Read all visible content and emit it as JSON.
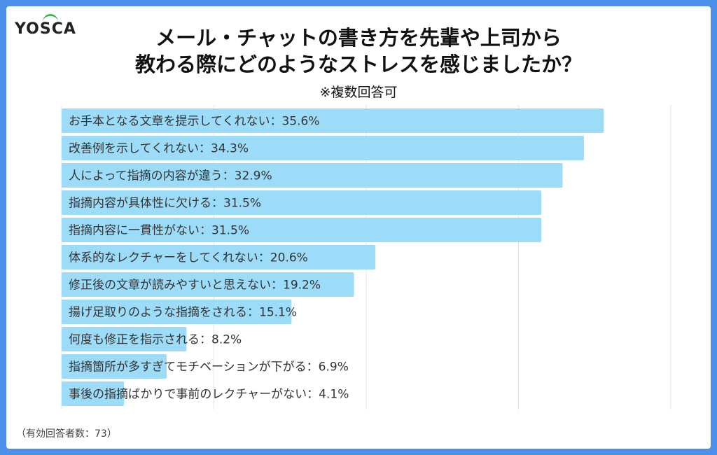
{
  "brand": {
    "logo_text": "YOSCA"
  },
  "title_line1": "メール・チャットの書き方を先輩や上司から",
  "title_line2": "教わる際にどのようなストレスを感じましたか？",
  "subtitle": "※複数回答可",
  "footnote": "（有効回答者数：73）",
  "colors": {
    "bar": "#9ddcf8",
    "frame": "#4a8fe8",
    "grid": "#e3e3e3"
  },
  "chart_data": {
    "type": "bar",
    "orientation": "horizontal",
    "xlim": [
      0,
      45
    ],
    "grid": true,
    "categories": [
      "お手本となる文章を提示してくれない",
      "改善例を示してくれない",
      "人によって指摘の内容が違う",
      "指摘内容が具体性に欠ける",
      "指摘内容に一貫性がない",
      "体系的なレクチャーをしてくれない",
      "修正後の文章が読みやすいと思えない",
      "揚げ足取りのような指摘をされる",
      "何度も修正を指示される",
      "指摘箇所が多すぎてモチベーションが下がる",
      "事後の指摘ばかりで事前のレクチャーがない"
    ],
    "values": [
      35.6,
      34.3,
      32.9,
      31.5,
      31.5,
      20.6,
      19.2,
      15.1,
      8.2,
      6.9,
      4.1
    ],
    "labels": [
      "お手本となる文章を提示してくれない：35.6%",
      "改善例を示してくれない：34.3%",
      "人によって指摘の内容が違う：32.9%",
      "指摘内容が具体性に欠ける：31.5%",
      "指摘内容に一貫性がない：31.5%",
      "体系的なレクチャーをしてくれない：20.6%",
      "修正後の文章が読みやすいと思えない：19.2%",
      "揚げ足取りのような指摘をされる：15.1%",
      "何度も修正を指示される：8.2%",
      "指摘箇所が多すぎてモチベーションが下がる：6.9%",
      "事後の指摘ばかりで事前のレクチャーがない：4.1%"
    ]
  }
}
